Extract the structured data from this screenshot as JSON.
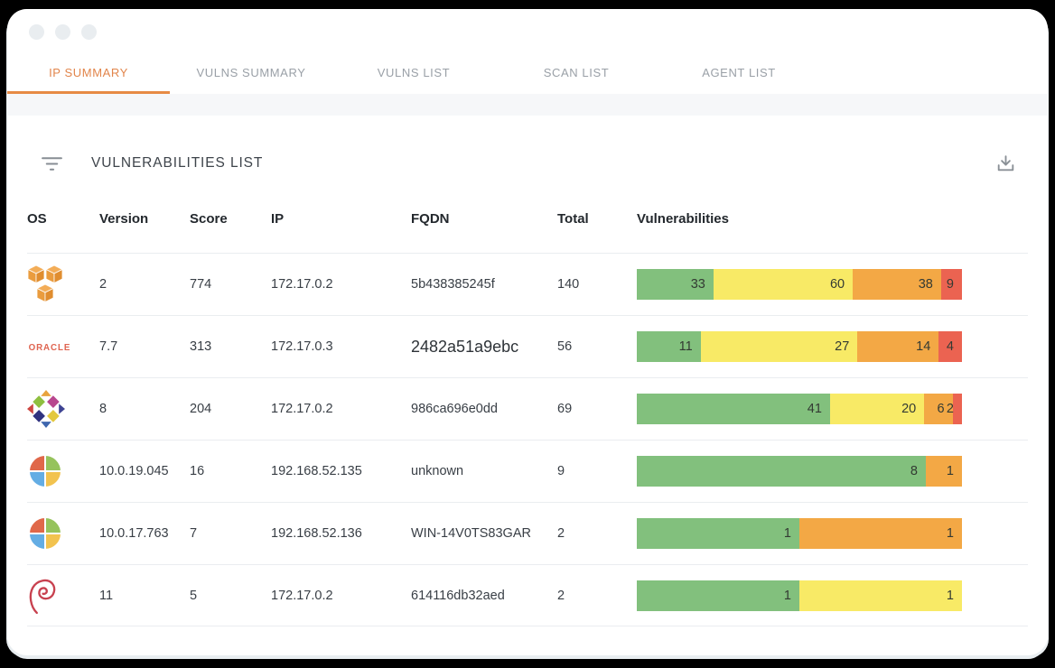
{
  "window": {
    "controls": [
      "window-control-1",
      "window-control-2",
      "window-control-3"
    ]
  },
  "tabs": [
    {
      "label": "IP SUMMARY",
      "active": true
    },
    {
      "label": "VULNS SUMMARY",
      "active": false
    },
    {
      "label": "VULNS LIST",
      "active": false
    },
    {
      "label": "SCAN LIST",
      "active": false
    },
    {
      "label": "AGENT LIST",
      "active": false
    }
  ],
  "header": {
    "title": "VULNERABILITIES LIST",
    "filter_icon": "filter-icon",
    "download_icon": "download-icon"
  },
  "accent_color": "#e78a44",
  "severity_colors": {
    "low": "#82c07d",
    "medium": "#f8ea66",
    "high": "#f3a845",
    "critical": "#eb6351"
  },
  "table": {
    "columns": [
      "OS",
      "Version",
      "Score",
      "IP",
      "FQDN",
      "Total",
      "Vulnerabilities"
    ],
    "rows": [
      {
        "os": "aws",
        "os_label": "aws-logo",
        "version": "2",
        "score": "774",
        "ip": "172.17.0.2",
        "fqdn": "5b438385245f",
        "total": 140,
        "vulns": [
          {
            "severity": "low",
            "count": 33
          },
          {
            "severity": "medium",
            "count": 60
          },
          {
            "severity": "high",
            "count": 38
          },
          {
            "severity": "critical",
            "count": 9
          }
        ]
      },
      {
        "os": "oracle",
        "os_label": "oracle-logo",
        "version": "7.7",
        "score": "313",
        "ip": "172.17.0.3",
        "fqdn": "2482a51a9ebc",
        "fqdn_large": true,
        "total": 56,
        "vulns": [
          {
            "severity": "low",
            "count": 11
          },
          {
            "severity": "medium",
            "count": 27
          },
          {
            "severity": "high",
            "count": 14
          },
          {
            "severity": "critical",
            "count": 4
          }
        ]
      },
      {
        "os": "centos",
        "os_label": "centos-logo",
        "version": "8",
        "score": "204",
        "ip": "172.17.0.2",
        "fqdn": "986ca696e0dd",
        "total": 69,
        "vulns": [
          {
            "severity": "low",
            "count": 41
          },
          {
            "severity": "medium",
            "count": 20
          },
          {
            "severity": "high",
            "count": 6
          },
          {
            "severity": "critical",
            "count": 2
          }
        ]
      },
      {
        "os": "windows",
        "os_label": "windows-logo",
        "version": "10.0.19.045",
        "score": "16",
        "ip": "192.168.52.135",
        "fqdn": "unknown",
        "total": 9,
        "vulns": [
          {
            "severity": "low",
            "count": 8
          },
          {
            "severity": "high",
            "count": 1
          }
        ]
      },
      {
        "os": "windows",
        "os_label": "windows-logo",
        "version": "10.0.17.763",
        "score": "7",
        "ip": "192.168.52.136",
        "fqdn": "WIN-14V0TS83GAR",
        "total": 2,
        "vulns": [
          {
            "severity": "low",
            "count": 1
          },
          {
            "severity": "high",
            "count": 1
          }
        ]
      },
      {
        "os": "debian",
        "os_label": "debian-logo",
        "version": "11",
        "score": "5",
        "ip": "172.17.0.2",
        "fqdn": "614116db32aed",
        "total": 2,
        "vulns": [
          {
            "severity": "low",
            "count": 1
          },
          {
            "severity": "medium",
            "count": 1
          }
        ]
      }
    ]
  },
  "oracle_wordmark": "ORACLE"
}
